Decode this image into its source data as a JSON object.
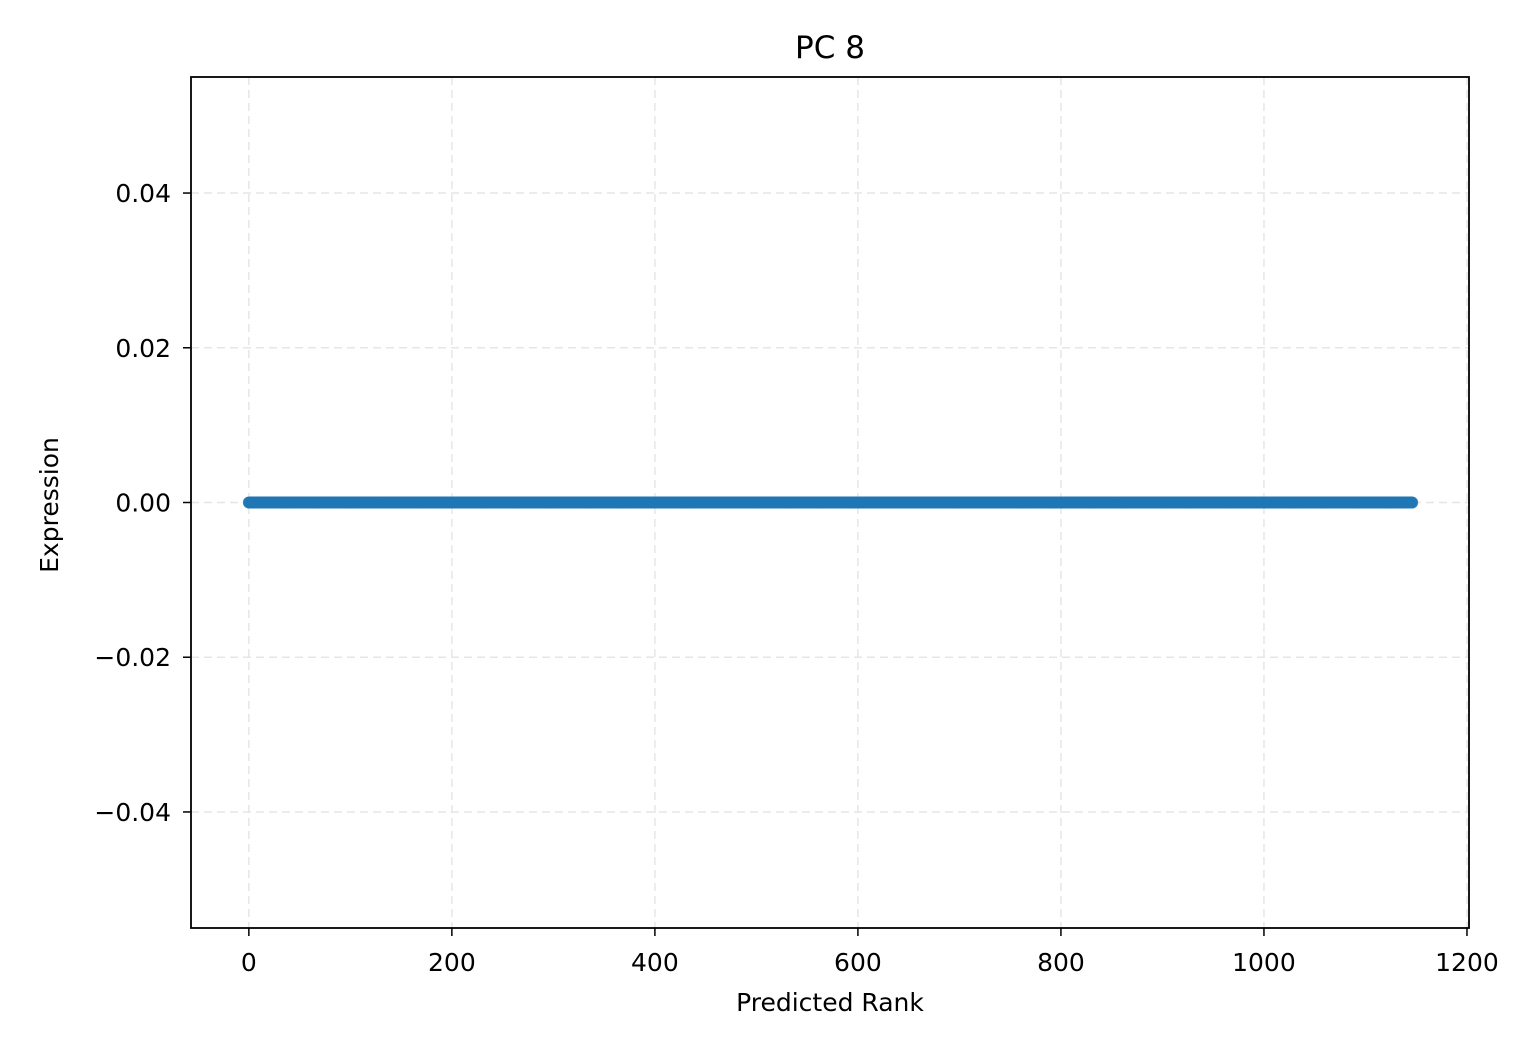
{
  "chart_data": {
    "type": "scatter",
    "title": "PC 8",
    "xlabel": "Predicted Rank",
    "ylabel": "Expression",
    "xlim": [
      -57,
      1202
    ],
    "ylim": [
      -0.055,
      0.055
    ],
    "x_ticks": [
      0,
      200,
      400,
      600,
      800,
      1000,
      1200
    ],
    "x_tick_labels": [
      "0",
      "200",
      "400",
      "600",
      "800",
      "1000",
      "1200"
    ],
    "y_ticks": [
      0.04,
      0.02,
      0.0,
      -0.02,
      -0.04
    ],
    "y_tick_labels": [
      "0.04",
      "0.02",
      "0.00",
      "−0.02",
      "−0.04"
    ],
    "grid": true,
    "series": [
      {
        "color": "#1f77b4",
        "x_range": [
          0,
          1146
        ],
        "y_constant": 0.0,
        "n_points": 1147
      }
    ]
  }
}
